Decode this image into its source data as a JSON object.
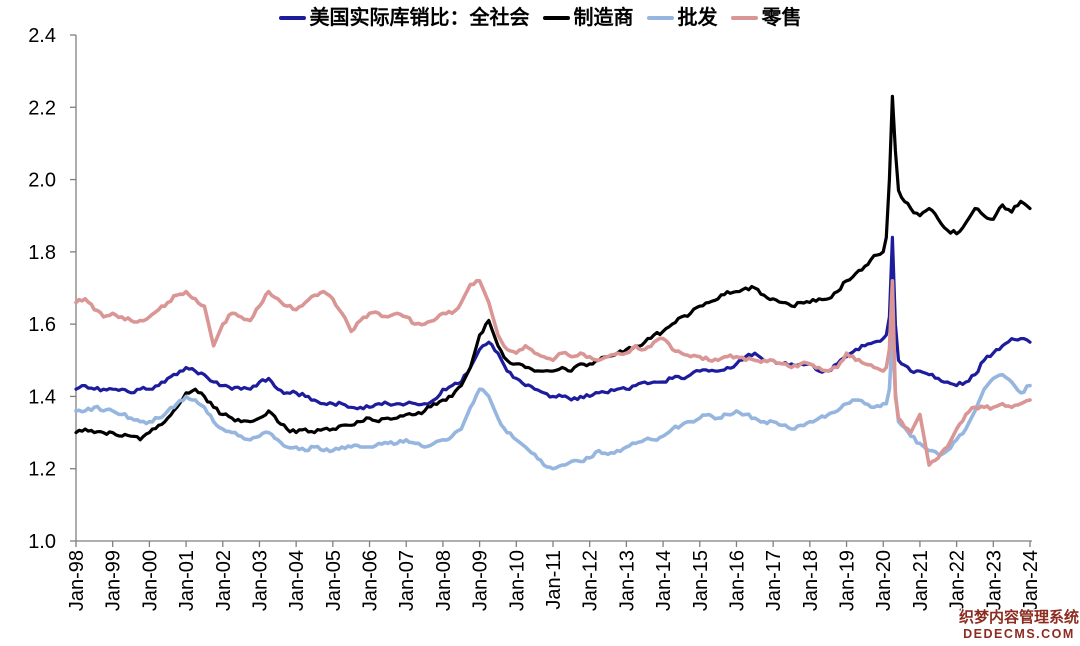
{
  "chart_data": {
    "type": "line",
    "title": "",
    "legend_position": "top",
    "grid": false,
    "x_axis": {
      "tick_labels": [
        "Jan-98",
        "Jan-99",
        "Jan-00",
        "Jan-01",
        "Jan-02",
        "Jan-03",
        "Jan-04",
        "Jan-05",
        "Jan-06",
        "Jan-07",
        "Jan-08",
        "Jan-09",
        "Jan-10",
        "Jan-11",
        "Jan-12",
        "Jan-13",
        "Jan-14",
        "Jan-15",
        "Jan-16",
        "Jan-17",
        "Jan-18",
        "Jan-19",
        "Jan-20",
        "Jan-21",
        "Jan-22",
        "Jan-23",
        "Jan-24"
      ],
      "tick_years": [
        1998,
        1999,
        2000,
        2001,
        2002,
        2003,
        2004,
        2005,
        2006,
        2007,
        2008,
        2009,
        2010,
        2011,
        2012,
        2013,
        2014,
        2015,
        2016,
        2017,
        2018,
        2019,
        2020,
        2021,
        2022,
        2023,
        2024
      ]
    },
    "y_axis": {
      "min": 1.0,
      "max": 2.4,
      "step": 0.2,
      "tick_labels": [
        "1.0",
        "1.2",
        "1.4",
        "1.6",
        "1.8",
        "2.0",
        "2.2",
        "2.4"
      ]
    },
    "x": [
      1998,
      1998.25,
      1998.5,
      1998.75,
      1999,
      1999.25,
      1999.5,
      1999.75,
      2000,
      2000.25,
      2000.5,
      2000.75,
      2001,
      2001.25,
      2001.5,
      2001.75,
      2002,
      2002.25,
      2002.5,
      2002.75,
      2003,
      2003.25,
      2003.5,
      2003.75,
      2004,
      2004.25,
      2004.5,
      2004.75,
      2005,
      2005.25,
      2005.5,
      2005.75,
      2006,
      2006.25,
      2006.5,
      2006.75,
      2007,
      2007.25,
      2007.5,
      2007.75,
      2008,
      2008.25,
      2008.5,
      2008.75,
      2009,
      2009.25,
      2009.5,
      2009.75,
      2010,
      2010.25,
      2010.5,
      2010.75,
      2011,
      2011.25,
      2011.5,
      2011.75,
      2012,
      2012.25,
      2012.5,
      2012.75,
      2013,
      2013.25,
      2013.5,
      2013.75,
      2014,
      2014.25,
      2014.5,
      2014.75,
      2015,
      2015.25,
      2015.5,
      2015.75,
      2016,
      2016.25,
      2016.5,
      2016.75,
      2017,
      2017.25,
      2017.5,
      2017.75,
      2018,
      2018.25,
      2018.5,
      2018.75,
      2019,
      2019.25,
      2019.5,
      2019.75,
      2020,
      2020.083,
      2020.167,
      2020.25,
      2020.333,
      2020.417,
      2020.5,
      2020.75,
      2021,
      2021.25,
      2021.5,
      2021.75,
      2022,
      2022.25,
      2022.5,
      2022.75,
      2023,
      2023.25,
      2023.5,
      2023.75,
      2024
    ],
    "series": [
      {
        "name": "美国实际库销比：全社会",
        "color": "#1C1C9C",
        "values": [
          1.42,
          1.43,
          1.42,
          1.42,
          1.42,
          1.42,
          1.41,
          1.42,
          1.42,
          1.43,
          1.45,
          1.46,
          1.48,
          1.47,
          1.46,
          1.44,
          1.43,
          1.42,
          1.42,
          1.42,
          1.44,
          1.45,
          1.42,
          1.41,
          1.41,
          1.4,
          1.39,
          1.38,
          1.38,
          1.38,
          1.37,
          1.37,
          1.37,
          1.38,
          1.38,
          1.38,
          1.38,
          1.38,
          1.38,
          1.39,
          1.42,
          1.43,
          1.44,
          1.48,
          1.53,
          1.55,
          1.52,
          1.47,
          1.45,
          1.43,
          1.42,
          1.41,
          1.4,
          1.4,
          1.39,
          1.4,
          1.4,
          1.41,
          1.41,
          1.42,
          1.42,
          1.43,
          1.44,
          1.44,
          1.44,
          1.45,
          1.45,
          1.46,
          1.47,
          1.47,
          1.47,
          1.48,
          1.49,
          1.51,
          1.52,
          1.5,
          1.5,
          1.49,
          1.49,
          1.49,
          1.49,
          1.47,
          1.47,
          1.49,
          1.51,
          1.53,
          1.54,
          1.55,
          1.56,
          1.57,
          1.62,
          1.84,
          1.6,
          1.5,
          1.49,
          1.47,
          1.47,
          1.46,
          1.45,
          1.44,
          1.43,
          1.44,
          1.46,
          1.5,
          1.52,
          1.54,
          1.56,
          1.56,
          1.55
        ]
      },
      {
        "name": "制造商",
        "color": "#000000",
        "values": [
          1.3,
          1.31,
          1.3,
          1.3,
          1.3,
          1.29,
          1.29,
          1.28,
          1.3,
          1.32,
          1.34,
          1.37,
          1.41,
          1.42,
          1.4,
          1.37,
          1.35,
          1.34,
          1.33,
          1.33,
          1.34,
          1.36,
          1.33,
          1.31,
          1.3,
          1.31,
          1.3,
          1.31,
          1.31,
          1.32,
          1.32,
          1.33,
          1.34,
          1.33,
          1.34,
          1.34,
          1.35,
          1.35,
          1.36,
          1.38,
          1.39,
          1.4,
          1.43,
          1.48,
          1.57,
          1.61,
          1.54,
          1.5,
          1.49,
          1.48,
          1.47,
          1.47,
          1.47,
          1.48,
          1.47,
          1.49,
          1.49,
          1.5,
          1.51,
          1.52,
          1.53,
          1.54,
          1.55,
          1.57,
          1.58,
          1.6,
          1.62,
          1.63,
          1.65,
          1.66,
          1.67,
          1.69,
          1.69,
          1.7,
          1.7,
          1.68,
          1.67,
          1.66,
          1.65,
          1.66,
          1.66,
          1.67,
          1.67,
          1.69,
          1.72,
          1.74,
          1.76,
          1.79,
          1.8,
          1.84,
          2.0,
          2.23,
          2.08,
          1.97,
          1.95,
          1.92,
          1.9,
          1.92,
          1.89,
          1.86,
          1.85,
          1.88,
          1.92,
          1.9,
          1.89,
          1.93,
          1.91,
          1.94,
          1.92
        ]
      },
      {
        "name": "批发",
        "color": "#96B6DF",
        "values": [
          1.36,
          1.36,
          1.37,
          1.36,
          1.36,
          1.35,
          1.34,
          1.33,
          1.33,
          1.34,
          1.36,
          1.38,
          1.4,
          1.39,
          1.37,
          1.33,
          1.31,
          1.3,
          1.29,
          1.28,
          1.29,
          1.3,
          1.28,
          1.26,
          1.26,
          1.25,
          1.26,
          1.25,
          1.25,
          1.26,
          1.26,
          1.26,
          1.26,
          1.27,
          1.27,
          1.27,
          1.28,
          1.27,
          1.26,
          1.27,
          1.28,
          1.29,
          1.31,
          1.37,
          1.42,
          1.4,
          1.34,
          1.3,
          1.28,
          1.26,
          1.24,
          1.21,
          1.2,
          1.21,
          1.22,
          1.22,
          1.23,
          1.25,
          1.24,
          1.25,
          1.26,
          1.27,
          1.28,
          1.28,
          1.29,
          1.31,
          1.32,
          1.33,
          1.34,
          1.35,
          1.34,
          1.35,
          1.36,
          1.35,
          1.34,
          1.33,
          1.33,
          1.32,
          1.31,
          1.32,
          1.33,
          1.34,
          1.35,
          1.36,
          1.38,
          1.39,
          1.38,
          1.37,
          1.38,
          1.38,
          1.42,
          1.57,
          1.41,
          1.33,
          1.32,
          1.29,
          1.27,
          1.25,
          1.24,
          1.25,
          1.28,
          1.31,
          1.36,
          1.42,
          1.45,
          1.46,
          1.44,
          1.41,
          1.43
        ]
      },
      {
        "name": "零售",
        "color": "#D99694",
        "values": [
          1.66,
          1.67,
          1.64,
          1.62,
          1.63,
          1.62,
          1.61,
          1.61,
          1.62,
          1.64,
          1.66,
          1.68,
          1.69,
          1.67,
          1.65,
          1.54,
          1.6,
          1.63,
          1.62,
          1.61,
          1.65,
          1.69,
          1.67,
          1.65,
          1.64,
          1.66,
          1.68,
          1.69,
          1.67,
          1.63,
          1.58,
          1.61,
          1.63,
          1.63,
          1.62,
          1.63,
          1.62,
          1.6,
          1.6,
          1.61,
          1.63,
          1.63,
          1.66,
          1.71,
          1.72,
          1.66,
          1.57,
          1.53,
          1.52,
          1.54,
          1.52,
          1.51,
          1.5,
          1.52,
          1.51,
          1.52,
          1.51,
          1.5,
          1.51,
          1.52,
          1.52,
          1.54,
          1.53,
          1.55,
          1.56,
          1.53,
          1.52,
          1.51,
          1.51,
          1.5,
          1.5,
          1.51,
          1.51,
          1.5,
          1.5,
          1.5,
          1.5,
          1.49,
          1.48,
          1.49,
          1.49,
          1.48,
          1.47,
          1.48,
          1.52,
          1.5,
          1.49,
          1.48,
          1.47,
          1.48,
          1.53,
          1.72,
          1.4,
          1.34,
          1.33,
          1.3,
          1.35,
          1.21,
          1.23,
          1.26,
          1.31,
          1.35,
          1.37,
          1.37,
          1.37,
          1.38,
          1.37,
          1.38,
          1.39
        ]
      }
    ]
  },
  "watermark": {
    "line1": "织梦内容管理系统",
    "line2": "DEDECMS.COM",
    "color": "#8C2B1F"
  }
}
